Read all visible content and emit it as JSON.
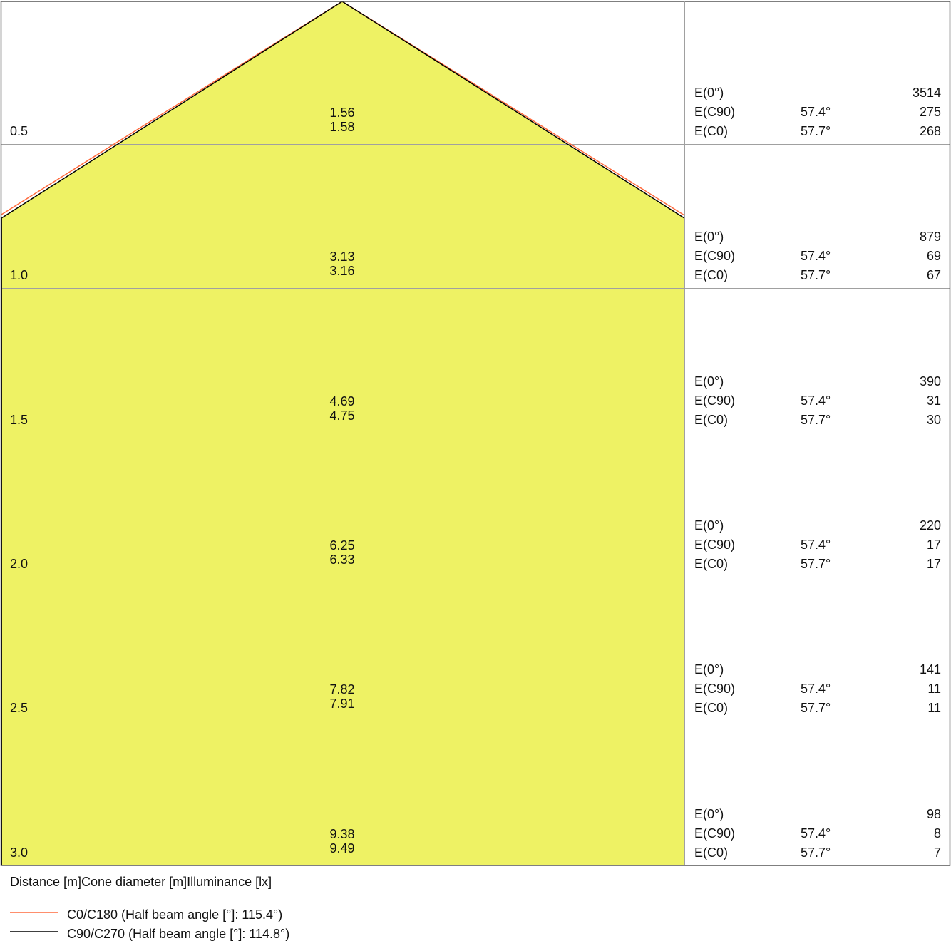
{
  "chart_data": {
    "type": "cone-diagram",
    "colors": {
      "fill": "#eef264",
      "c0_line": "#ff6a3d",
      "c90_line": "#000000",
      "grid": "#a0a0a0"
    },
    "rows": [
      {
        "distance": "0.5",
        "diam_c0": "1.56",
        "diam_c90": "1.58",
        "e0": "3514",
        "c90_angle": "57.4°",
        "e_c90": "275",
        "c0_angle": "57.7°",
        "e_c0": "268"
      },
      {
        "distance": "1.0",
        "diam_c0": "3.13",
        "diam_c90": "3.16",
        "e0": "879",
        "c90_angle": "57.4°",
        "e_c90": "69",
        "c0_angle": "57.7°",
        "e_c0": "67"
      },
      {
        "distance": "1.5",
        "diam_c0": "4.69",
        "diam_c90": "4.75",
        "e0": "390",
        "c90_angle": "57.4°",
        "e_c90": "31",
        "c0_angle": "57.7°",
        "e_c0": "30"
      },
      {
        "distance": "2.0",
        "diam_c0": "6.25",
        "diam_c90": "6.33",
        "e0": "220",
        "c90_angle": "57.4°",
        "e_c90": "17",
        "c0_angle": "57.7°",
        "e_c0": "17"
      },
      {
        "distance": "2.5",
        "diam_c0": "7.82",
        "diam_c90": "7.91",
        "e0": "141",
        "c90_angle": "57.4°",
        "e_c90": "11",
        "c0_angle": "57.7°",
        "e_c0": "11"
      },
      {
        "distance": "3.0",
        "diam_c0": "9.38",
        "diam_c90": "9.49",
        "e0": "98",
        "c90_angle": "57.4°",
        "e_c90": "8",
        "c0_angle": "57.7°",
        "e_c0": "7"
      }
    ],
    "labels": {
      "e0": "E(0°)",
      "e_c90": "E(C90)",
      "e_c0": "E(C0)"
    },
    "axis_caption": "Distance [m]Cone diameter [m]Illuminance [lx]",
    "legend": [
      {
        "label": "C0/C180 (Half beam angle [°]: 115.4°)",
        "color": "#ff6a3d"
      },
      {
        "label": "C90/C270 (Half beam angle [°]: 114.8°)",
        "color": "#000000"
      }
    ]
  }
}
